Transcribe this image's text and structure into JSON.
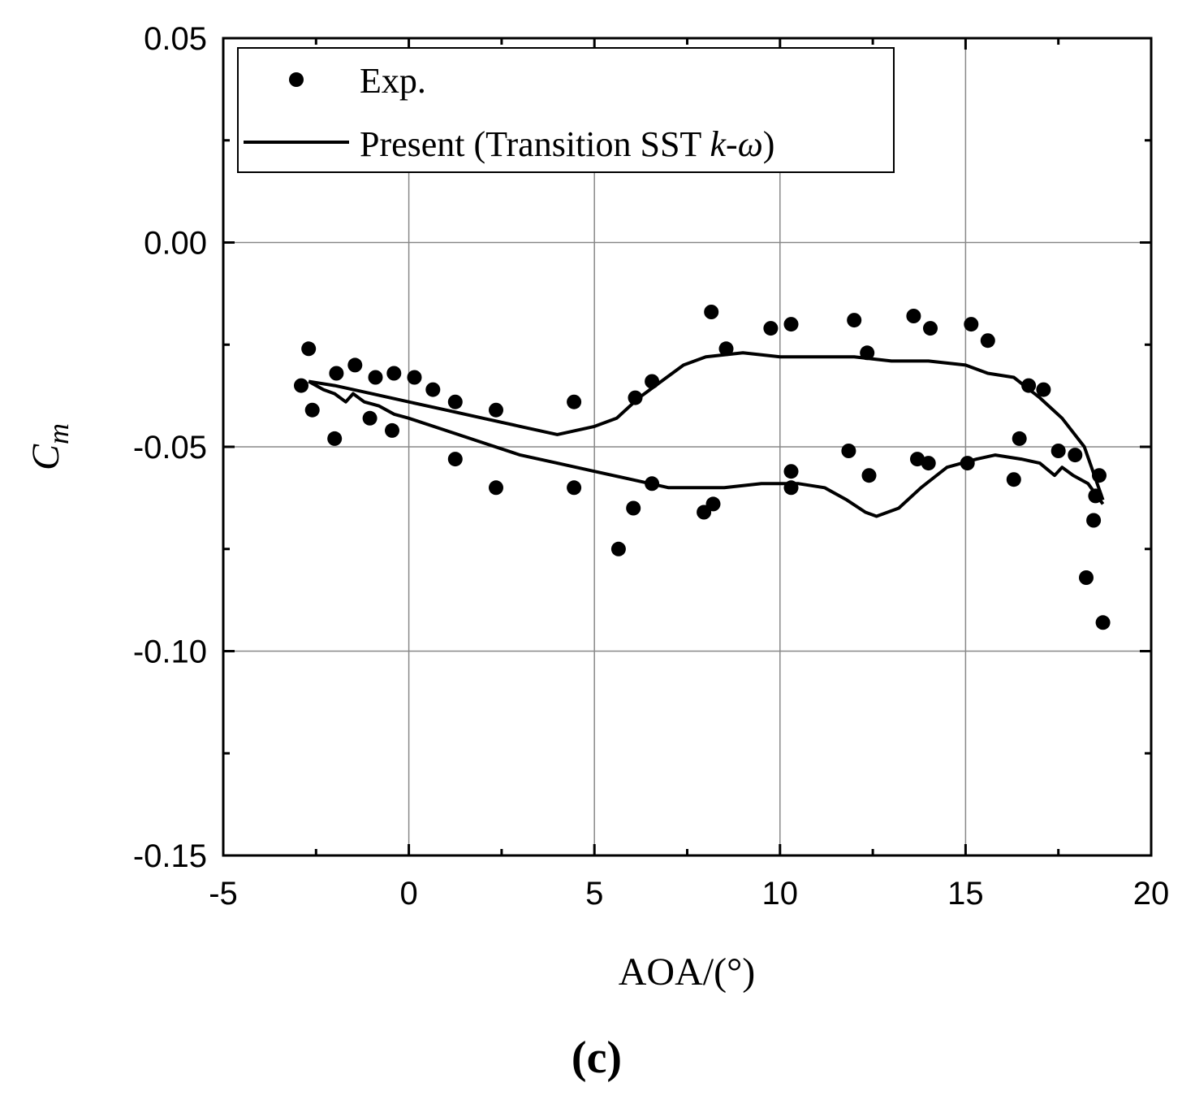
{
  "chart_data": {
    "type": "scatter",
    "title": "",
    "xlabel": "AOA/(°)",
    "ylabel": {
      "main": "C",
      "sub": "m"
    },
    "xlim": [
      -5,
      20
    ],
    "ylim": [
      -0.15,
      0.05
    ],
    "xticks": [
      -5,
      0,
      5,
      10,
      15,
      20
    ],
    "xtick_labels": [
      "-5",
      "0",
      "5",
      "10",
      "15",
      "20"
    ],
    "yticks": [
      -0.15,
      -0.1,
      -0.05,
      0.0,
      0.05
    ],
    "ytick_labels": [
      "-0.15",
      "-0.10",
      "-0.05",
      "0.00",
      "0.05"
    ],
    "grid": true,
    "legend_position": "top-left",
    "series": [
      {
        "name": "Exp.",
        "kind": "scatter",
        "marker": "filled-circle",
        "points": [
          [
            -2.9,
            -0.035
          ],
          [
            -2.7,
            -0.026
          ],
          [
            -2.6,
            -0.041
          ],
          [
            -2.0,
            -0.048
          ],
          [
            -1.95,
            -0.032
          ],
          [
            -1.45,
            -0.03
          ],
          [
            -1.05,
            -0.043
          ],
          [
            -0.9,
            -0.033
          ],
          [
            -0.45,
            -0.046
          ],
          [
            -0.4,
            -0.032
          ],
          [
            0.15,
            -0.033
          ],
          [
            0.65,
            -0.036
          ],
          [
            1.25,
            -0.053
          ],
          [
            1.25,
            -0.039
          ],
          [
            2.35,
            -0.06
          ],
          [
            2.35,
            -0.041
          ],
          [
            4.45,
            -0.039
          ],
          [
            4.45,
            -0.06
          ],
          [
            5.65,
            -0.075
          ],
          [
            6.05,
            -0.065
          ],
          [
            6.1,
            -0.038
          ],
          [
            6.55,
            -0.034
          ],
          [
            6.55,
            -0.059
          ],
          [
            7.95,
            -0.066
          ],
          [
            8.15,
            -0.017
          ],
          [
            8.2,
            -0.064
          ],
          [
            8.55,
            -0.026
          ],
          [
            9.75,
            -0.021
          ],
          [
            10.3,
            -0.02
          ],
          [
            10.3,
            -0.056
          ],
          [
            10.3,
            -0.06
          ],
          [
            11.85,
            -0.051
          ],
          [
            12.0,
            -0.019
          ],
          [
            12.35,
            -0.027
          ],
          [
            12.4,
            -0.057
          ],
          [
            13.6,
            -0.018
          ],
          [
            13.7,
            -0.053
          ],
          [
            14.0,
            -0.054
          ],
          [
            14.05,
            -0.021
          ],
          [
            15.05,
            -0.054
          ],
          [
            15.15,
            -0.02
          ],
          [
            15.6,
            -0.024
          ],
          [
            16.3,
            -0.058
          ],
          [
            16.45,
            -0.048
          ],
          [
            16.7,
            -0.035
          ],
          [
            17.1,
            -0.036
          ],
          [
            17.5,
            -0.051
          ],
          [
            17.95,
            -0.052
          ],
          [
            18.25,
            -0.082
          ],
          [
            18.45,
            -0.068
          ],
          [
            18.5,
            -0.062
          ],
          [
            18.6,
            -0.057
          ],
          [
            18.7,
            -0.093
          ]
        ]
      },
      {
        "name": "Present (Transition SST k-ω)",
        "kind": "line",
        "points": [
          [
            -2.7,
            -0.034
          ],
          [
            -2.3,
            -0.036
          ],
          [
            -2.0,
            -0.037
          ],
          [
            -1.7,
            -0.039
          ],
          [
            -1.5,
            -0.037
          ],
          [
            -1.2,
            -0.039
          ],
          [
            -0.8,
            -0.04
          ],
          [
            -0.4,
            -0.042
          ],
          [
            0.0,
            -0.043
          ],
          [
            1.0,
            -0.046
          ],
          [
            2.0,
            -0.049
          ],
          [
            3.0,
            -0.052
          ],
          [
            4.0,
            -0.054
          ],
          [
            5.0,
            -0.056
          ],
          [
            6.0,
            -0.058
          ],
          [
            7.0,
            -0.06
          ],
          [
            8.0,
            -0.06
          ],
          [
            8.5,
            -0.06
          ],
          [
            9.5,
            -0.059
          ],
          [
            10.5,
            -0.059
          ],
          [
            11.2,
            -0.06
          ],
          [
            11.8,
            -0.063
          ],
          [
            12.3,
            -0.066
          ],
          [
            12.6,
            -0.067
          ],
          [
            13.2,
            -0.065
          ],
          [
            13.8,
            -0.06
          ],
          [
            14.5,
            -0.055
          ],
          [
            15.3,
            -0.053
          ],
          [
            15.8,
            -0.052
          ],
          [
            16.5,
            -0.053
          ],
          [
            17.0,
            -0.054
          ],
          [
            17.4,
            -0.057
          ],
          [
            17.6,
            -0.055
          ],
          [
            17.9,
            -0.057
          ],
          [
            18.3,
            -0.059
          ],
          [
            18.7,
            -0.064
          ]
        ]
      },
      {
        "name": "Present (Transition SST k-ω)",
        "kind": "line",
        "points": [
          [
            -2.7,
            -0.034
          ],
          [
            -2.0,
            -0.035
          ],
          [
            -1.0,
            -0.037
          ],
          [
            0.0,
            -0.039
          ],
          [
            1.0,
            -0.041
          ],
          [
            2.0,
            -0.043
          ],
          [
            3.0,
            -0.045
          ],
          [
            4.0,
            -0.047
          ],
          [
            4.5,
            -0.046
          ],
          [
            5.0,
            -0.045
          ],
          [
            5.6,
            -0.043
          ],
          [
            6.2,
            -0.038
          ],
          [
            6.8,
            -0.034
          ],
          [
            7.4,
            -0.03
          ],
          [
            8.0,
            -0.028
          ],
          [
            9.0,
            -0.027
          ],
          [
            10.0,
            -0.028
          ],
          [
            11.0,
            -0.028
          ],
          [
            12.0,
            -0.028
          ],
          [
            13.0,
            -0.029
          ],
          [
            14.0,
            -0.029
          ],
          [
            15.0,
            -0.03
          ],
          [
            15.6,
            -0.032
          ],
          [
            16.3,
            -0.033
          ],
          [
            17.0,
            -0.038
          ],
          [
            17.6,
            -0.043
          ],
          [
            18.2,
            -0.05
          ],
          [
            18.7,
            -0.063
          ]
        ]
      }
    ]
  },
  "legend": {
    "items": [
      {
        "label": "Exp.",
        "kind": "scatter"
      },
      {
        "label_prefix": "Present (Transition SST ",
        "symbol_k": "k",
        "dash": "-",
        "symbol_omega": "ω",
        "label_suffix": ")",
        "kind": "line"
      }
    ]
  },
  "caption": "(c)"
}
